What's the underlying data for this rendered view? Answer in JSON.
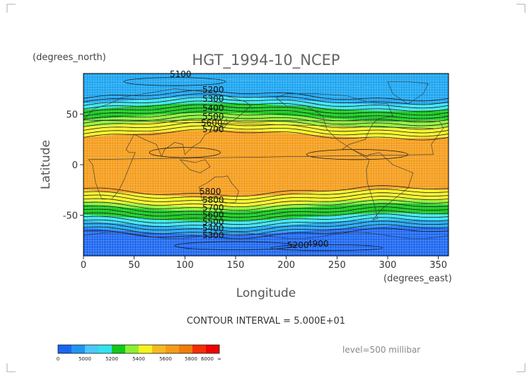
{
  "map": {
    "title": "HGT_1994-10_NCEP",
    "y_units": "(degrees_north)",
    "x_units": "(degrees_east)",
    "y_label": "Latitude",
    "x_label": "Longitude",
    "contour_note": "CONTOUR INTERVAL = 5.000E+01",
    "level_note": "level=500 millibar"
  },
  "chart_data": {
    "type": "heatmap",
    "title": "HGT_1994-10_NCEP",
    "xlabel": "Longitude",
    "ylabel": "Latitude",
    "xlim": [
      0,
      360
    ],
    "ylim": [
      -90,
      90
    ],
    "x_ticks": [
      "0",
      "50",
      "100",
      "150",
      "200",
      "250",
      "300",
      "350"
    ],
    "y_ticks": [
      "50",
      "0",
      "-50"
    ],
    "contour_interval": 50,
    "contour_labels": [
      "5100",
      "5200",
      "5300",
      "5400",
      "5500",
      "5600",
      "5700",
      "5800",
      "5800",
      "5700",
      "5600",
      "5500",
      "5400",
      "5300",
      "5200",
      "4900"
    ],
    "colorbar_labels": [
      "0",
      "5000",
      "5200",
      "5400",
      "5600",
      "5800",
      "6000",
      "∞"
    ],
    "colorbar_colors": [
      "#1a66f0",
      "#2196f0",
      "#4cc8f8",
      "#33e3ef",
      "#12c81a",
      "#8cf031",
      "#f6f21f",
      "#f4ba22",
      "#f49c19",
      "#f07c0a",
      "#f42d04",
      "#ef0000"
    ],
    "bands": [
      {
        "lat_from": 90,
        "lat_to": 80,
        "color": "#19a4f0"
      },
      {
        "lat_from": 80,
        "lat_to": 63,
        "color": "#19a4f0"
      },
      {
        "lat_from": 63,
        "lat_to": 57,
        "color": "#33e3ef"
      },
      {
        "lat_from": 57,
        "lat_to": 47,
        "color": "#12c81a"
      },
      {
        "lat_from": 47,
        "lat_to": 40,
        "color": "#8cf031"
      },
      {
        "lat_from": 40,
        "lat_to": 30,
        "color": "#f6f21f"
      },
      {
        "lat_from": 30,
        "lat_to": -28,
        "color": "#f49c19"
      },
      {
        "lat_from": -28,
        "lat_to": -38,
        "color": "#f6f21f"
      },
      {
        "lat_from": -38,
        "lat_to": -42,
        "color": "#8cf031"
      },
      {
        "lat_from": -42,
        "lat_to": -52,
        "color": "#12c81a"
      },
      {
        "lat_from": -52,
        "lat_to": -58,
        "color": "#33e3ef"
      },
      {
        "lat_from": -58,
        "lat_to": -65,
        "color": "#19a4f0"
      },
      {
        "lat_from": -65,
        "lat_to": -90,
        "color": "#1a66f0"
      }
    ]
  }
}
